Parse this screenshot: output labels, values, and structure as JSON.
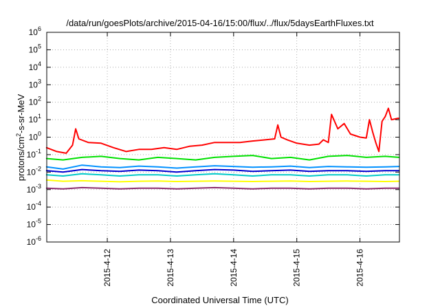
{
  "chart_data": {
    "type": "line",
    "title": "/data/run/goesPlots/archive/2015-04-16/15:00/flux/../flux/5daysEarthFluxes.txt",
    "xlabel": "Coordinated Universal Time (UTC)",
    "ylabel": "protons/cm2-s-sr-MeV",
    "ylabel_parts": {
      "pre": "protons/cm",
      "sup": "2",
      "post": "-s-sr-MeV"
    },
    "y_scale": "log",
    "ylim": [
      1e-06,
      1000000.0
    ],
    "xlim": [
      "2015-04-11 01:00",
      "2015-04-16 15:00"
    ],
    "x_ticks": [
      {
        "label": "2015-4-12",
        "day": 1
      },
      {
        "label": "2015-4-13",
        "day": 2
      },
      {
        "label": "2015-4-14",
        "day": 3
      },
      {
        "label": "2015-4-15",
        "day": 4
      },
      {
        "label": "2015-4-16",
        "day": 5
      }
    ],
    "y_ticks": [
      {
        "exp": -6
      },
      {
        "exp": -5
      },
      {
        "exp": -4
      },
      {
        "exp": -3
      },
      {
        "exp": -2
      },
      {
        "exp": -1
      },
      {
        "exp": 0
      },
      {
        "exp": 1
      },
      {
        "exp": 2
      },
      {
        "exp": 3
      },
      {
        "exp": 4
      },
      {
        "exp": 5
      },
      {
        "exp": 6
      }
    ],
    "grid": true,
    "x_unit_note": "x = days after 2015-04-11 00:00 UTC",
    "series": [
      {
        "color": "#ff0000",
        "x": [
          0.04,
          0.2,
          0.35,
          0.45,
          0.5,
          0.55,
          0.7,
          0.9,
          1.1,
          1.3,
          1.5,
          1.7,
          1.9,
          2.1,
          2.3,
          2.5,
          2.7,
          2.9,
          3.1,
          3.3,
          3.5,
          3.65,
          3.7,
          3.75,
          3.85,
          4.0,
          4.2,
          4.35,
          4.42,
          4.5,
          4.55,
          4.65,
          4.75,
          4.85,
          5.0,
          5.1,
          5.15,
          5.2,
          5.25,
          5.3,
          5.35,
          5.4,
          5.45,
          5.5,
          5.6,
          5.62
        ],
        "values": [
          0.25,
          0.15,
          0.12,
          0.35,
          3.0,
          0.8,
          0.5,
          0.45,
          0.25,
          0.15,
          0.2,
          0.2,
          0.25,
          0.2,
          0.3,
          0.35,
          0.5,
          0.5,
          0.5,
          0.6,
          0.7,
          0.8,
          5.0,
          1.0,
          0.7,
          0.45,
          0.35,
          0.4,
          0.7,
          0.5,
          20.0,
          3.0,
          6.0,
          1.5,
          1.0,
          0.9,
          10.0,
          2.0,
          0.5,
          0.15,
          8.0,
          15.0,
          45.0,
          10.0,
          12.0,
          12.0
        ]
      },
      {
        "color": "#00e000",
        "x": [
          0.04,
          0.3,
          0.6,
          0.9,
          1.2,
          1.5,
          1.8,
          2.1,
          2.4,
          2.7,
          3.0,
          3.3,
          3.6,
          3.9,
          4.2,
          4.5,
          4.8,
          5.1,
          5.4,
          5.62
        ],
        "values": [
          0.06,
          0.05,
          0.07,
          0.08,
          0.06,
          0.05,
          0.07,
          0.06,
          0.05,
          0.07,
          0.08,
          0.09,
          0.06,
          0.07,
          0.05,
          0.08,
          0.09,
          0.07,
          0.08,
          0.07
        ]
      },
      {
        "color": "#0090ff",
        "x": [
          0.04,
          0.3,
          0.6,
          0.9,
          1.2,
          1.5,
          1.8,
          2.1,
          2.4,
          2.7,
          3.0,
          3.3,
          3.6,
          3.9,
          4.2,
          4.5,
          4.8,
          5.1,
          5.4,
          5.62
        ],
        "values": [
          0.02,
          0.015,
          0.025,
          0.02,
          0.018,
          0.022,
          0.02,
          0.017,
          0.02,
          0.023,
          0.021,
          0.019,
          0.02,
          0.022,
          0.018,
          0.021,
          0.02,
          0.019,
          0.02,
          0.021
        ]
      },
      {
        "color": "#0000d0",
        "x": [
          0.04,
          0.3,
          0.6,
          0.9,
          1.2,
          1.5,
          1.8,
          2.1,
          2.4,
          2.7,
          3.0,
          3.3,
          3.6,
          3.9,
          4.2,
          4.5,
          4.8,
          5.1,
          5.4,
          5.62
        ],
        "values": [
          0.012,
          0.01,
          0.014,
          0.012,
          0.011,
          0.013,
          0.012,
          0.01,
          0.012,
          0.014,
          0.013,
          0.011,
          0.012,
          0.013,
          0.011,
          0.012,
          0.012,
          0.011,
          0.012,
          0.012
        ]
      },
      {
        "color": "#00c8c8",
        "x": [
          0.04,
          0.3,
          0.6,
          0.9,
          1.2,
          1.5,
          1.8,
          2.1,
          2.4,
          2.7,
          3.0,
          3.3,
          3.6,
          3.9,
          4.2,
          4.5,
          4.8,
          5.1,
          5.4,
          5.62
        ],
        "values": [
          0.007,
          0.006,
          0.008,
          0.007,
          0.006,
          0.007,
          0.007,
          0.006,
          0.007,
          0.008,
          0.007,
          0.006,
          0.007,
          0.007,
          0.006,
          0.007,
          0.007,
          0.006,
          0.007,
          0.007
        ]
      },
      {
        "color": "#ffff00",
        "x": [
          0.04,
          0.3,
          0.6,
          0.9,
          1.2,
          1.5,
          1.8,
          2.1,
          2.4,
          2.7,
          3.0,
          3.3,
          3.6,
          3.9,
          4.2,
          4.5,
          4.8,
          5.1,
          5.4,
          5.62
        ],
        "values": [
          0.0035,
          0.003,
          0.0032,
          0.003,
          0.0028,
          0.003,
          0.0031,
          0.0029,
          0.003,
          0.0031,
          0.003,
          0.0029,
          0.003,
          0.0031,
          0.0029,
          0.003,
          0.0031,
          0.003,
          0.0029,
          0.003
        ]
      },
      {
        "color": "#8b2a6b",
        "x": [
          0.04,
          0.3,
          0.6,
          0.9,
          1.2,
          1.5,
          1.8,
          2.1,
          2.4,
          2.7,
          3.0,
          3.3,
          3.6,
          3.9,
          4.2,
          4.5,
          4.8,
          5.1,
          5.4,
          5.62
        ],
        "values": [
          0.0012,
          0.0011,
          0.0013,
          0.0012,
          0.0011,
          0.0012,
          0.0012,
          0.0011,
          0.0012,
          0.0013,
          0.0012,
          0.0011,
          0.0012,
          0.0012,
          0.0011,
          0.0012,
          0.0012,
          0.0011,
          0.0012,
          0.0012
        ]
      }
    ]
  }
}
